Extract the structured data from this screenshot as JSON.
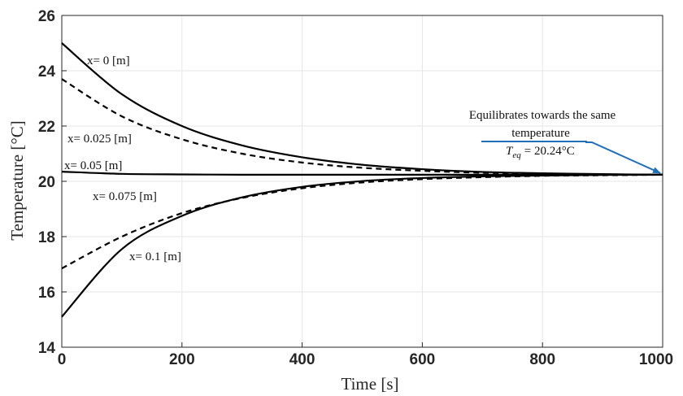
{
  "chart_data": {
    "type": "line",
    "xlabel": "Time [s]",
    "ylabel": "Temperature [°C]",
    "xlim": [
      0,
      1000
    ],
    "ylim": [
      14,
      26
    ],
    "x_ticks": [
      "0",
      "200",
      "400",
      "600",
      "800",
      "1000"
    ],
    "y_ticks": [
      "14",
      "16",
      "18",
      "20",
      "22",
      "24",
      "26"
    ],
    "grid": true,
    "x": [
      0,
      100,
      200,
      300,
      400,
      500,
      600,
      700,
      800,
      900,
      1000
    ],
    "series": [
      {
        "name": "x= 0 [m]",
        "style": "solid",
        "values": [
          25.0,
          23.15,
          22.0,
          21.3,
          20.87,
          20.6,
          20.44,
          20.34,
          20.29,
          20.26,
          20.24
        ]
      },
      {
        "name": "x= 0.025 [m]",
        "style": "dashed",
        "values": [
          23.7,
          22.35,
          21.52,
          21.0,
          20.68,
          20.49,
          20.38,
          20.31,
          20.27,
          20.25,
          20.24
        ]
      },
      {
        "name": "x= 0.05 [m]",
        "style": "solid",
        "values": [
          20.35,
          20.27,
          20.25,
          20.24,
          20.24,
          20.24,
          20.24,
          20.24,
          20.24,
          20.24,
          20.24
        ]
      },
      {
        "name": "x= 0.075 [m]",
        "style": "dashed",
        "values": [
          16.85,
          18.0,
          18.85,
          19.4,
          19.75,
          19.96,
          20.08,
          20.15,
          20.2,
          20.22,
          20.24
        ]
      },
      {
        "name": "x= 0.1 [m]",
        "style": "solid",
        "values": [
          15.1,
          17.55,
          18.75,
          19.42,
          19.8,
          20.01,
          20.12,
          20.18,
          20.21,
          20.23,
          20.24
        ]
      }
    ],
    "annotation": {
      "line1": "Equilibrates towards the same",
      "line2": "temperature",
      "eq_symbol": "T",
      "eq_subscript": "eq",
      "eq_value": "= 20.24°C",
      "arrow_target": [
        1000,
        20.24
      ],
      "arrow_color": "#1f6fbf"
    },
    "colors": {
      "curves": "#000000",
      "grid": "#e6e6e6",
      "axis": "#262626"
    }
  }
}
